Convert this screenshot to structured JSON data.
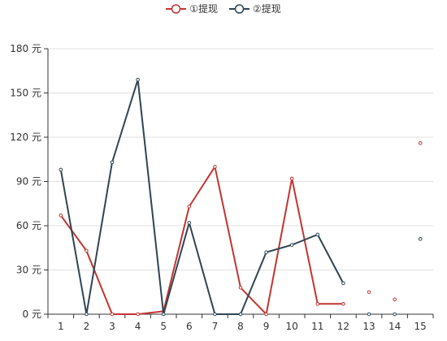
{
  "chart_data": {
    "type": "line",
    "categories": [
      "1",
      "2",
      "3",
      "4",
      "5",
      "6",
      "7",
      "8",
      "9",
      "10",
      "11",
      "12",
      "13",
      "14",
      "15"
    ],
    "y_ticks": [
      "0 元",
      "30 元",
      "60 元",
      "90 元",
      "120 元",
      "150 元",
      "180 元"
    ],
    "ylim": [
      0,
      180
    ],
    "grid": true,
    "legend_position": "top-center",
    "series": [
      {
        "name": "①提现",
        "color": "#c23531",
        "values": [
          67,
          43,
          0,
          0,
          2,
          73,
          100,
          18,
          0,
          92,
          7,
          7,
          15,
          10,
          116
        ],
        "line_until_index": 11
      },
      {
        "name": "②提现",
        "color": "#2f4554",
        "values": [
          98,
          0,
          103,
          159,
          0,
          62,
          0,
          0,
          42,
          47,
          54,
          21,
          0,
          0,
          51
        ],
        "line_until_index": 11
      }
    ]
  }
}
